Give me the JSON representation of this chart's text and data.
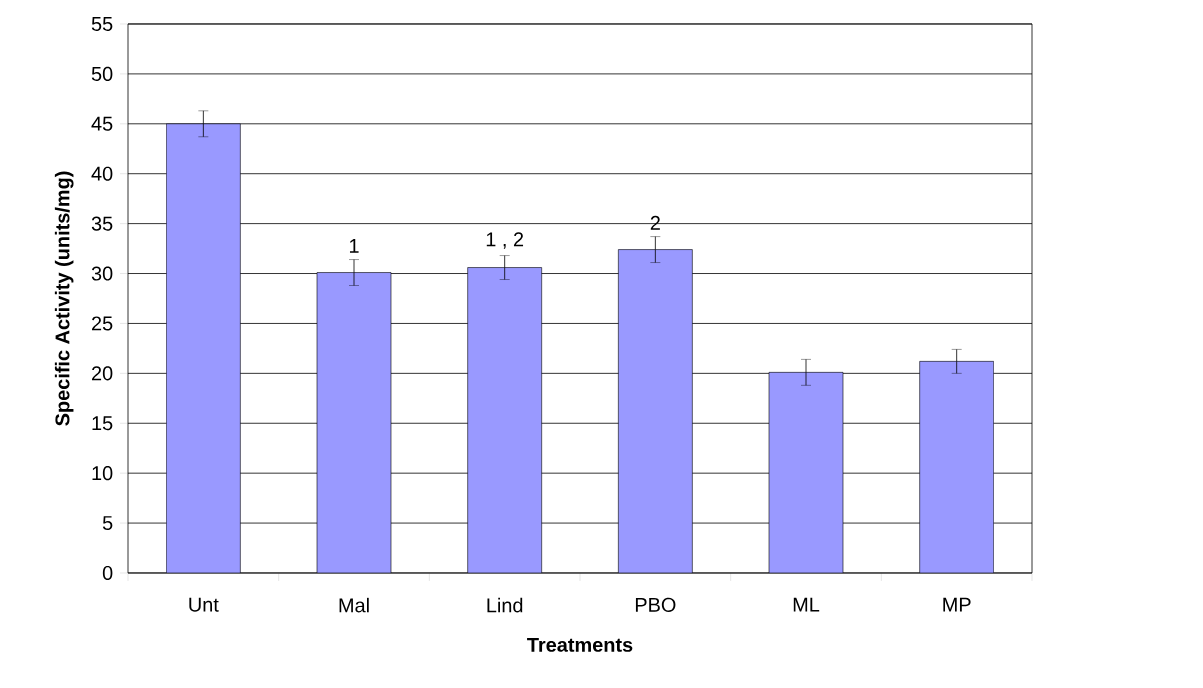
{
  "chart_data": {
    "type": "bar",
    "xlabel": "Treatments",
    "ylabel": "Specific Activity (units/mg)",
    "categories": [
      "Unt",
      "Mal",
      "Lind",
      "PBO",
      "ML",
      "MP"
    ],
    "values": [
      45.0,
      30.1,
      30.6,
      32.4,
      20.1,
      21.2
    ],
    "errors": [
      1.3,
      1.3,
      1.2,
      1.3,
      1.3,
      1.2
    ],
    "color": "#9999ff",
    "ylim": [
      0,
      55
    ],
    "yticks": [
      0,
      5,
      10,
      15,
      20,
      25,
      30,
      35,
      40,
      45,
      50,
      55
    ],
    "grid": "y",
    "annotations": [
      "1",
      "1 , 2",
      "2"
    ]
  }
}
